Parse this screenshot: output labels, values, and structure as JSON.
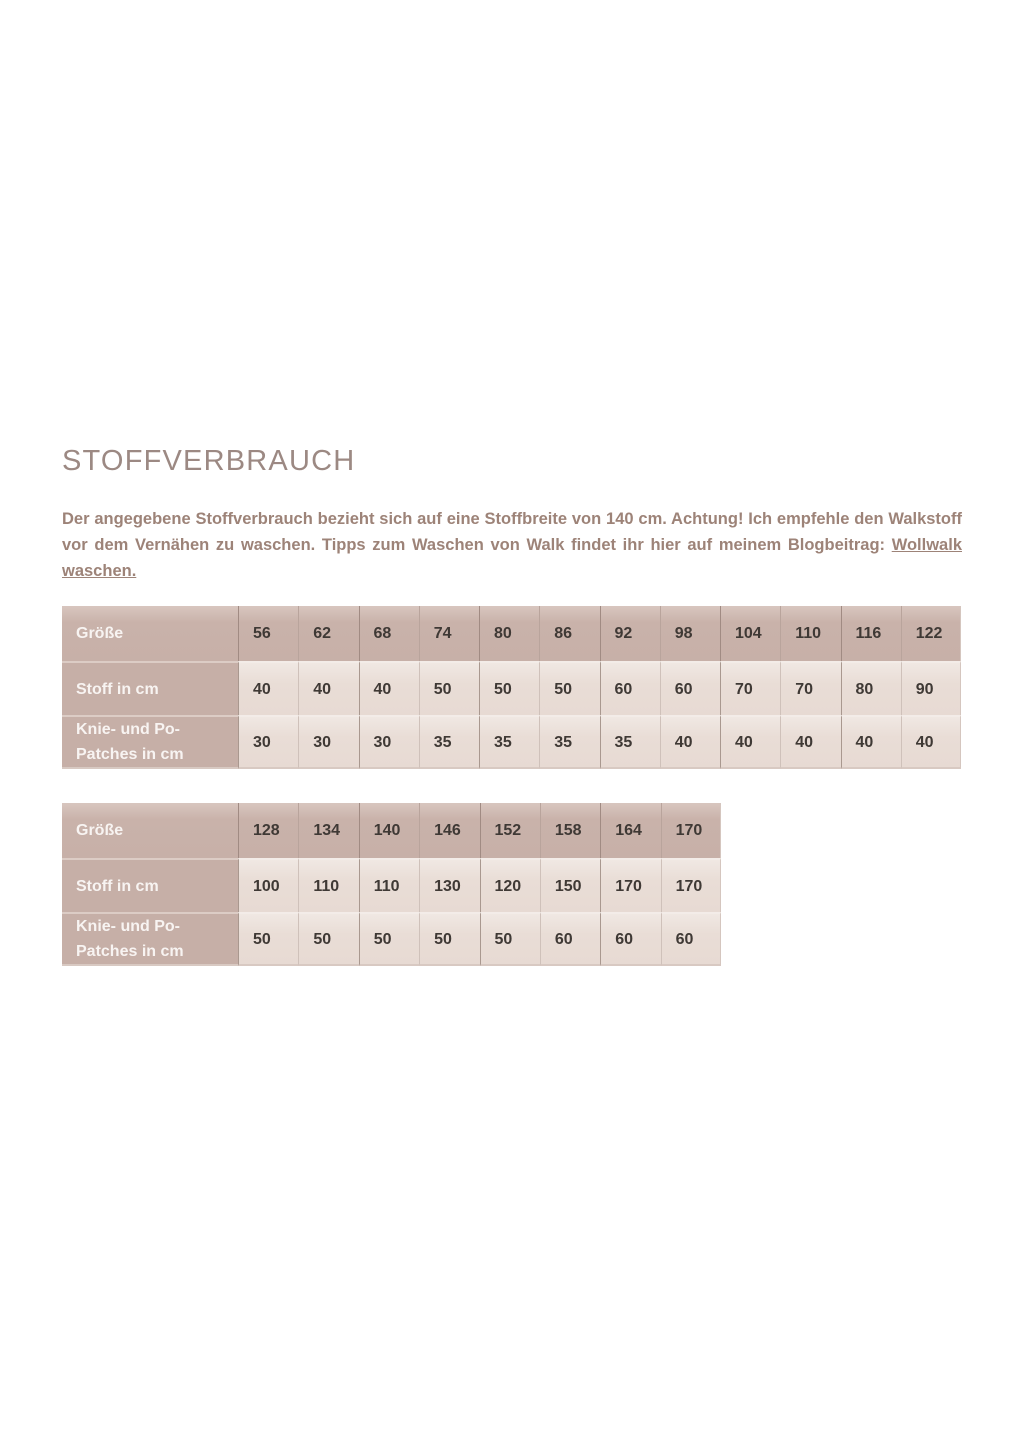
{
  "page": {
    "title": "STOFFVERBRAUCH",
    "intro": {
      "text_before_link": "Der angegebene Stoffverbrauch bezieht sich auf eine Stoffbreite von 140 cm. Achtung! Ich empfehle den Walkstoff vor dem Vernähen zu waschen. Tipps zum Waschen von Walk findet ihr hier auf meinem Blogbeitrag: ",
      "link_text": "Wollwalk waschen."
    }
  },
  "tables": [
    {
      "header_label": "Größe",
      "header_values": [
        "56",
        "62",
        "68",
        "74",
        "80",
        "86",
        "92",
        "98",
        "104",
        "110",
        "116",
        "122"
      ],
      "rows": [
        {
          "label": "Stoff in cm",
          "values": [
            "40",
            "40",
            "40",
            "50",
            "50",
            "50",
            "60",
            "60",
            "70",
            "70",
            "80",
            "90"
          ]
        },
        {
          "label": "Knie- und Po-Patches in cm",
          "values": [
            "30",
            "30",
            "30",
            "35",
            "35",
            "35",
            "35",
            "40",
            "40",
            "40",
            "40",
            "40"
          ]
        }
      ]
    },
    {
      "header_label": "Größe",
      "header_values": [
        "128",
        "134",
        "140",
        "146",
        "152",
        "158",
        "164",
        "170"
      ],
      "rows": [
        {
          "label": "Stoff in cm",
          "values": [
            "100",
            "110",
            "110",
            "130",
            "120",
            "150",
            "170",
            "170"
          ]
        },
        {
          "label": "Knie- und Po-Patches in cm",
          "values": [
            "50",
            "50",
            "50",
            "50",
            "50",
            "60",
            "60",
            "60"
          ]
        }
      ]
    }
  ],
  "colors": {
    "header_bg": "#c8b1a9",
    "cell_bg": "#e9ddd7",
    "title_text": "#9c8983",
    "body_text": "#9d8378",
    "number_text": "#3f3935",
    "label_text": "#f8f4f2"
  }
}
